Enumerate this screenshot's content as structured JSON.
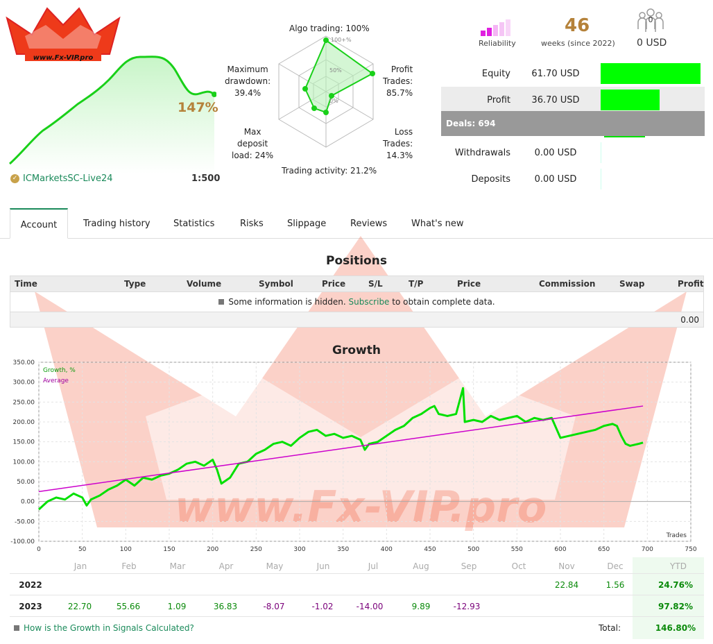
{
  "header": {
    "logo_text": "www.Fx-VIP.pro",
    "growth_pct": "147%",
    "broker": "ICMarketsSC-Live24",
    "leverage": "1:500"
  },
  "radar": {
    "algo": "Algo trading: 100%",
    "profit_trades": [
      "Profit",
      "Trades:",
      "85.7%"
    ],
    "loss_trades": [
      "Loss",
      "Trades:",
      "14.3%"
    ],
    "activity": "Trading activity: 21.2%",
    "deposit_load": [
      "Max",
      "deposit",
      "load: 24%"
    ],
    "drawdown": [
      "Maximum",
      "drawdown:",
      "39.4%"
    ],
    "scale": [
      "100+%",
      "50%",
      "0%"
    ],
    "values": {
      "algo": 1.0,
      "profit": 0.857,
      "loss": 0.143,
      "activity": 0.212,
      "load": 0.24,
      "drawdown": 0.394
    }
  },
  "stats": {
    "reliability_label": "Reliability",
    "weeks_num": "46",
    "weeks_label": "weeks (since 2022)",
    "subscribers": "0",
    "subscribers_usd": "0 USD"
  },
  "account": {
    "equity_label": "Equity",
    "equity_value": "61.70 USD",
    "equity_fill": 1.0,
    "profit_label": "Profit",
    "profit_value": "36.70 USD",
    "profit_fill": 0.59,
    "deals": "Deals: 694",
    "withdrawals_label": "Withdrawals",
    "withdrawals_value": "0.00 USD",
    "deposits_label": "Deposits",
    "deposits_value": "0.00 USD"
  },
  "tabs": [
    "Account",
    "Trading history",
    "Statistics",
    "Risks",
    "Slippage",
    "Reviews",
    "What's new"
  ],
  "positions": {
    "title": "Positions",
    "columns": [
      "Time",
      "Type",
      "Volume",
      "Symbol",
      "Price",
      "S/L",
      "T/P",
      "Price",
      "Commission",
      "Swap",
      "Profit"
    ],
    "info_prefix": "Some information is hidden.",
    "info_link": "Subscribe",
    "info_suffix": "to obtain complete data.",
    "total": "0.00"
  },
  "growth": {
    "title": "Growth",
    "legend_growth": "Growth, %",
    "legend_average": "Average",
    "x_label": "Trades"
  },
  "chart_data": {
    "type": "line",
    "title": "Growth",
    "xlabel": "Trades",
    "ylabel": "",
    "xlim": [
      0,
      750
    ],
    "ylim": [
      -100,
      350
    ],
    "x_ticks": [
      0,
      50,
      100,
      150,
      200,
      250,
      300,
      350,
      400,
      450,
      500,
      550,
      600,
      650,
      700,
      750
    ],
    "y_ticks": [
      350,
      300,
      250,
      200,
      150,
      100,
      50,
      0,
      -50,
      -100
    ],
    "series": [
      {
        "name": "Growth, %",
        "color": "#00e000",
        "x": [
          0,
          10,
          20,
          30,
          40,
          50,
          55,
          60,
          70,
          80,
          90,
          100,
          110,
          120,
          130,
          140,
          150,
          160,
          170,
          180,
          190,
          200,
          205,
          210,
          220,
          230,
          240,
          245,
          250,
          260,
          270,
          280,
          290,
          300,
          310,
          320,
          330,
          340,
          350,
          360,
          370,
          375,
          380,
          390,
          400,
          410,
          420,
          430,
          440,
          450,
          455,
          460,
          470,
          480,
          488,
          490,
          500,
          510,
          520,
          530,
          540,
          550,
          560,
          570,
          580,
          590,
          600,
          610,
          620,
          630,
          640,
          650,
          660,
          665,
          670,
          675,
          680,
          690,
          695
        ],
        "y": [
          -20,
          0,
          10,
          5,
          20,
          10,
          -10,
          5,
          15,
          30,
          40,
          55,
          40,
          60,
          55,
          65,
          70,
          80,
          95,
          100,
          90,
          105,
          80,
          45,
          60,
          95,
          100,
          110,
          120,
          130,
          145,
          150,
          140,
          160,
          175,
          180,
          165,
          170,
          160,
          165,
          155,
          130,
          145,
          150,
          165,
          180,
          190,
          210,
          220,
          235,
          240,
          220,
          215,
          220,
          285,
          200,
          205,
          200,
          215,
          205,
          210,
          215,
          200,
          210,
          205,
          210,
          160,
          165,
          170,
          175,
          180,
          190,
          195,
          190,
          165,
          145,
          140,
          145,
          148
        ]
      },
      {
        "name": "Average",
        "color": "#cc00cc",
        "x": [
          0,
          695
        ],
        "y": [
          25,
          240
        ]
      }
    ],
    "grid": true,
    "legend": "top-left"
  },
  "monthly": {
    "months": [
      "Jan",
      "Feb",
      "Mar",
      "Apr",
      "May",
      "Jun",
      "Jul",
      "Aug",
      "Sep",
      "Oct",
      "Nov",
      "Dec",
      "YTD"
    ],
    "rows": [
      {
        "year": "2022",
        "values": [
          "",
          "",
          "",
          "",
          "",
          "",
          "",
          "",
          "",
          "",
          "22.84",
          "1.56"
        ],
        "ytd": "24.76%"
      },
      {
        "year": "2023",
        "values": [
          "22.70",
          "55.66",
          "1.09",
          "36.83",
          "-8.07",
          "-1.02",
          "-14.00",
          "9.89",
          "-12.93",
          "",
          "",
          ""
        ],
        "ytd": "97.82%"
      }
    ],
    "help_link": "How is the Growth in Signals Calculated?",
    "total_label": "Total:",
    "total_value": "146.80%",
    "positive_color": "#0a8a0a",
    "negative_color": "#7a007a"
  }
}
